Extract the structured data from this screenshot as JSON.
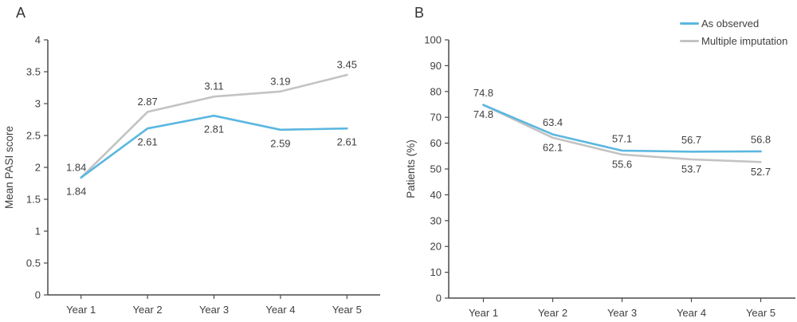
{
  "colors": {
    "background": "#ffffff",
    "axis": "#4a4a4a",
    "text": "#3f3f3f",
    "as_observed": "#5bb7e0",
    "multiple_imputation": "#c3c3c3"
  },
  "legend": {
    "position": "top-right",
    "items": [
      {
        "label": "As observed",
        "color": "#5bb7e0",
        "swatch": "line"
      },
      {
        "label": "Multiple imputation",
        "color": "#c3c3c3",
        "swatch": "line"
      }
    ]
  },
  "chart_data": [
    {
      "panel_label": "A",
      "type": "line",
      "title": "",
      "xlabel": "",
      "ylabel": "Mean PASI score",
      "categories": [
        "Year 1",
        "Year 2",
        "Year 3",
        "Year 4",
        "Year 5"
      ],
      "ylim": [
        0,
        4
      ],
      "yticks": [
        0,
        0.5,
        1,
        1.5,
        2,
        2.5,
        3,
        3.5,
        4
      ],
      "ytick_labels": [
        "0",
        "0.5",
        "1",
        "1.5",
        "2",
        "2.5",
        "3",
        "3.5",
        "4"
      ],
      "grid": false,
      "series": [
        {
          "name": "Multiple imputation",
          "color": "#c3c3c3",
          "values": [
            1.84,
            2.87,
            3.11,
            3.19,
            3.45
          ],
          "point_labels": [
            "1.84",
            "2.87",
            "3.11",
            "3.19",
            "3.45"
          ],
          "label_side": "above"
        },
        {
          "name": "As observed",
          "color": "#5bb7e0",
          "values": [
            1.84,
            2.61,
            2.81,
            2.59,
            2.61
          ],
          "point_labels": [
            "1.84",
            "2.61",
            "2.81",
            "2.59",
            "2.61"
          ],
          "label_side": "below"
        }
      ]
    },
    {
      "panel_label": "B",
      "type": "line",
      "title": "",
      "xlabel": "",
      "ylabel": "Patients (%)",
      "categories": [
        "Year 1",
        "Year 2",
        "Year 3",
        "Year 4",
        "Year 5"
      ],
      "ylim": [
        0,
        100
      ],
      "yticks": [
        0,
        10,
        20,
        30,
        40,
        50,
        60,
        70,
        80,
        90,
        100
      ],
      "ytick_labels": [
        "0",
        "10",
        "20",
        "30",
        "40",
        "50",
        "60",
        "70",
        "80",
        "90",
        "100"
      ],
      "grid": false,
      "series": [
        {
          "name": "Multiple imputation",
          "color": "#c3c3c3",
          "values": [
            74.8,
            62.1,
            55.6,
            53.7,
            52.7
          ],
          "point_labels": [
            "74.8",
            "62.1",
            "55.6",
            "53.7",
            "52.7"
          ],
          "label_side": "below"
        },
        {
          "name": "As observed",
          "color": "#5bb7e0",
          "values": [
            74.8,
            63.4,
            57.1,
            56.7,
            56.8
          ],
          "point_labels": [
            "74.8",
            "63.4",
            "57.1",
            "56.7",
            "56.8"
          ],
          "label_side": "above"
        }
      ]
    }
  ]
}
